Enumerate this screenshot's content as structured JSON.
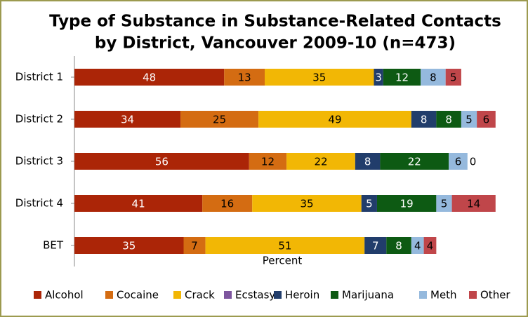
{
  "chart_data": {
    "type": "stacked-barh",
    "title": [
      "Type of Substance in Substance-Related Contacts",
      "by District, Vancouver 2009-10 (n=473)"
    ],
    "x_label": "Percent",
    "categories": [
      "District 1",
      "District 2",
      "District 3",
      "District 4",
      "BET"
    ],
    "xlim": [
      0,
      140
    ],
    "legend": "bottom",
    "series": [
      {
        "name": "Alcohol",
        "color": "#ab2507",
        "label_color": "#ffffff",
        "show_labels": true,
        "values": [
          48,
          34,
          56,
          41,
          35
        ]
      },
      {
        "name": "Cocaine",
        "color": "#d46c12",
        "label_color": "#000000",
        "show_labels": true,
        "values": [
          13,
          25,
          12,
          16,
          7
        ]
      },
      {
        "name": "Crack",
        "color": "#f2b705",
        "label_color": "#000000",
        "show_labels": true,
        "values": [
          35,
          49,
          22,
          35,
          51
        ]
      },
      {
        "name": "Ecstasy",
        "color": "#7d559e",
        "label_color": "#ffffff",
        "show_labels": false,
        "values": [
          0,
          0,
          0,
          0,
          0
        ]
      },
      {
        "name": "Heroin",
        "color": "#213d6b",
        "label_color": "#ffffff",
        "show_labels": true,
        "values": [
          3,
          8,
          8,
          5,
          7
        ]
      },
      {
        "name": "Marijuana",
        "color": "#0d5a13",
        "label_color": "#ffffff",
        "show_labels": true,
        "values": [
          12,
          8,
          22,
          19,
          8
        ]
      },
      {
        "name": "Meth",
        "color": "#95b9dd",
        "label_color": "#000000",
        "show_labels": true,
        "values": [
          8,
          5,
          6,
          5,
          4
        ]
      },
      {
        "name": "Other",
        "color": "#c0464a",
        "label_color": "#000000",
        "show_labels": true,
        "values": [
          5,
          6,
          0,
          14,
          4
        ]
      }
    ]
  }
}
